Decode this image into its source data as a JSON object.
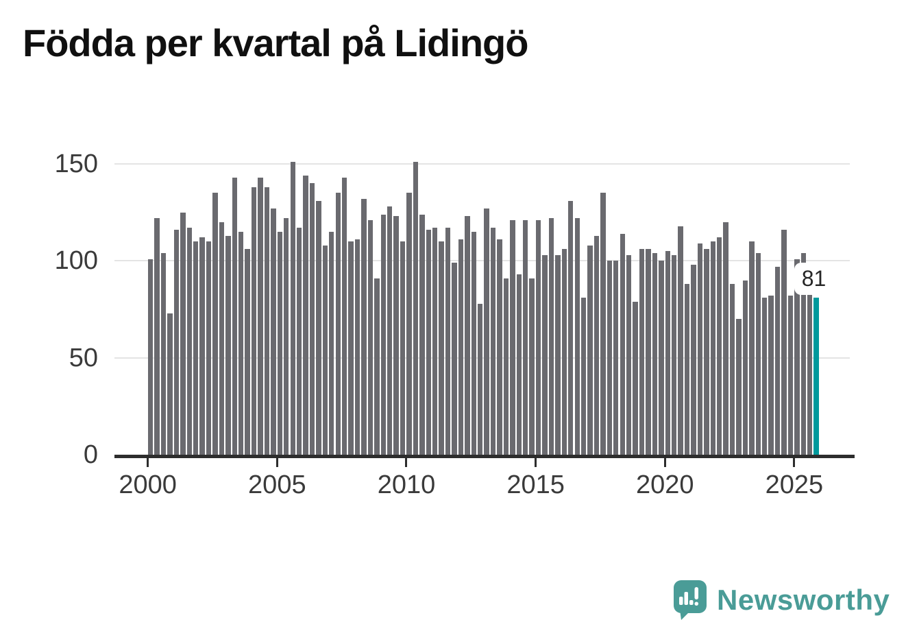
{
  "title": "Födda per kvartal på Lidingö",
  "annotation": {
    "label": "81"
  },
  "y_axis": {
    "ticks": [
      0,
      50,
      100,
      150
    ]
  },
  "x_axis": {
    "ticks": [
      2000,
      2005,
      2010,
      2015,
      2020,
      2025
    ]
  },
  "logo": {
    "text": "Newsworthy"
  },
  "colors": {
    "bar": "#6a6a6f",
    "highlight": "#00999c",
    "grid": "#e4e4e4",
    "axis": "#2d2d2d",
    "axis_text": "#3a3a3a",
    "title": "#101010",
    "logo_teal": "#4a9c97"
  },
  "chart_data": {
    "type": "bar",
    "title": "Födda per kvartal på Lidingö",
    "xlabel": "",
    "ylabel": "",
    "ylim": [
      0,
      155
    ],
    "y_ticks": [
      0,
      50,
      100,
      150
    ],
    "x_tick_labels": [
      "2000",
      "2005",
      "2010",
      "2015",
      "2020",
      "2025"
    ],
    "grid": true,
    "legend": false,
    "highlight_index": 103,
    "highlight_label": "81",
    "categories": [
      "2000 Q1",
      "2000 Q2",
      "2000 Q3",
      "2000 Q4",
      "2001 Q1",
      "2001 Q2",
      "2001 Q3",
      "2001 Q4",
      "2002 Q1",
      "2002 Q2",
      "2002 Q3",
      "2002 Q4",
      "2003 Q1",
      "2003 Q2",
      "2003 Q3",
      "2003 Q4",
      "2004 Q1",
      "2004 Q2",
      "2004 Q3",
      "2004 Q4",
      "2005 Q1",
      "2005 Q2",
      "2005 Q3",
      "2005 Q4",
      "2006 Q1",
      "2006 Q2",
      "2006 Q3",
      "2006 Q4",
      "2007 Q1",
      "2007 Q2",
      "2007 Q3",
      "2007 Q4",
      "2008 Q1",
      "2008 Q2",
      "2008 Q3",
      "2008 Q4",
      "2009 Q1",
      "2009 Q2",
      "2009 Q3",
      "2009 Q4",
      "2010 Q1",
      "2010 Q2",
      "2010 Q3",
      "2010 Q4",
      "2011 Q1",
      "2011 Q2",
      "2011 Q3",
      "2011 Q4",
      "2012 Q1",
      "2012 Q2",
      "2012 Q3",
      "2012 Q4",
      "2013 Q1",
      "2013 Q2",
      "2013 Q3",
      "2013 Q4",
      "2014 Q1",
      "2014 Q2",
      "2014 Q3",
      "2014 Q4",
      "2015 Q1",
      "2015 Q2",
      "2015 Q3",
      "2015 Q4",
      "2016 Q1",
      "2016 Q2",
      "2016 Q3",
      "2016 Q4",
      "2017 Q1",
      "2017 Q2",
      "2017 Q3",
      "2017 Q4",
      "2018 Q1",
      "2018 Q2",
      "2018 Q3",
      "2018 Q4",
      "2019 Q1",
      "2019 Q2",
      "2019 Q3",
      "2019 Q4",
      "2020 Q1",
      "2020 Q2",
      "2020 Q3",
      "2020 Q4",
      "2021 Q1",
      "2021 Q2",
      "2021 Q3",
      "2021 Q4",
      "2022 Q1",
      "2022 Q2",
      "2022 Q3",
      "2022 Q4",
      "2023 Q1",
      "2023 Q2",
      "2023 Q3",
      "2023 Q4",
      "2024 Q1",
      "2024 Q2",
      "2024 Q3",
      "2024 Q4",
      "2025 Q1",
      "2025 Q2",
      "2025 Q3",
      "2025 Q4"
    ],
    "values": [
      101,
      122,
      104,
      73,
      116,
      125,
      117,
      110,
      112,
      110,
      135,
      120,
      113,
      143,
      115,
      106,
      138,
      143,
      138,
      127,
      115,
      122,
      151,
      117,
      144,
      140,
      131,
      108,
      115,
      135,
      143,
      110,
      111,
      132,
      121,
      91,
      124,
      128,
      123,
      110,
      135,
      151,
      124,
      116,
      117,
      110,
      117,
      99,
      111,
      123,
      115,
      78,
      127,
      117,
      111,
      91,
      121,
      93,
      121,
      91,
      121,
      103,
      122,
      103,
      106,
      131,
      122,
      81,
      108,
      113,
      135,
      100,
      100,
      114,
      103,
      79,
      106,
      106,
      104,
      100,
      105,
      103,
      118,
      88,
      98,
      109,
      106,
      110,
      112,
      120,
      88,
      70,
      90,
      110,
      104,
      81,
      82,
      97,
      116,
      82,
      101,
      104,
      84,
      81
    ]
  }
}
